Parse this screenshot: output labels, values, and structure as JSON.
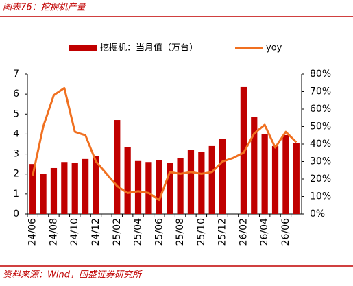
{
  "chart_data": {
    "type": "bar-line",
    "title": "图表76：挖掘机产量",
    "source": "资料来源：Wind，国盛证券研究所",
    "categories": [
      "24/06",
      null,
      "24/08",
      null,
      "24/10",
      null,
      "24/12",
      null,
      "25/02",
      null,
      "25/04",
      null,
      "25/06",
      null,
      "25/08",
      null,
      "25/10",
      null,
      "25/12",
      null,
      "26/02",
      null,
      "26/04",
      null,
      "26/06",
      null
    ],
    "series": [
      {
        "name": "挖掘机：当月值（万台）",
        "color": "#c00000",
        "type": "bar",
        "values": [
          2.5,
          2.0,
          2.3,
          2.6,
          2.55,
          2.75,
          2.9,
          null,
          4.7,
          3.35,
          2.65,
          2.6,
          2.7,
          2.55,
          2.8,
          3.2,
          3.1,
          3.4,
          3.75,
          null,
          6.35,
          4.85,
          4.0,
          3.4,
          3.95,
          3.55
        ]
      },
      {
        "name": "yoy",
        "color": "#f07020",
        "type": "line",
        "axis": "y2",
        "values": [
          22,
          50,
          68,
          72,
          47,
          45,
          30,
          23,
          16,
          12,
          13,
          12,
          8,
          24,
          23,
          24,
          23,
          24,
          30,
          32,
          35,
          46,
          51,
          38,
          47,
          41
        ]
      }
    ],
    "ylim": [
      0,
      7
    ],
    "yticks": [
      0,
      1,
      2,
      3,
      4,
      5,
      6,
      7
    ],
    "y2lim": [
      0,
      80
    ],
    "y2ticks": [
      {
        "value": 0,
        "label": "0%"
      },
      {
        "value": 10,
        "label": "10%"
      },
      {
        "value": 20,
        "label": "20%"
      },
      {
        "value": 30,
        "label": "30%"
      },
      {
        "value": 40,
        "label": "40%"
      },
      {
        "value": 50,
        "label": "50%"
      },
      {
        "value": 60,
        "label": "60%"
      },
      {
        "value": 70,
        "label": "70%"
      },
      {
        "value": 80,
        "label": "80%"
      }
    ],
    "legend": "top"
  }
}
